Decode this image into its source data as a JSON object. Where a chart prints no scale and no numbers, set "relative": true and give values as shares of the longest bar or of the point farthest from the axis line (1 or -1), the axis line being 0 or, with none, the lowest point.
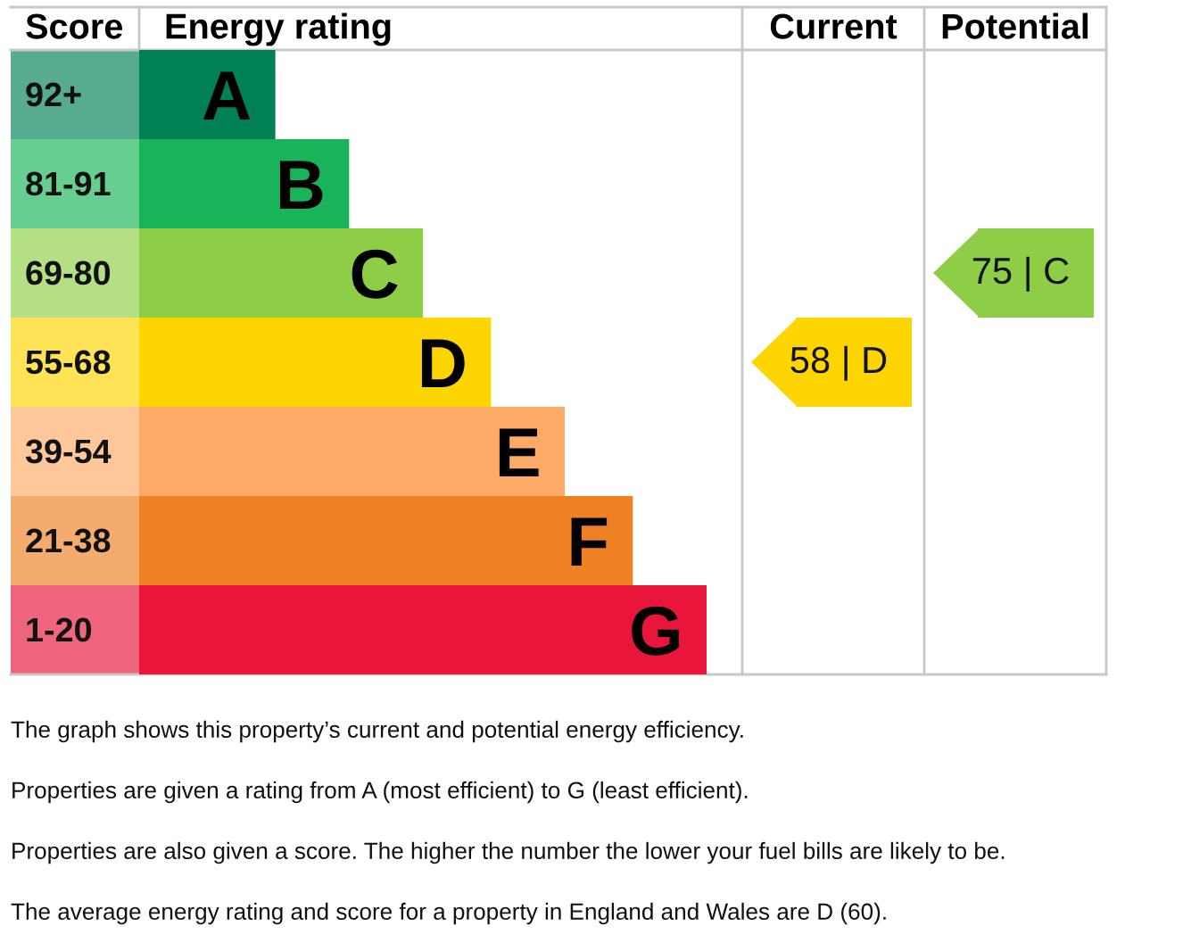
{
  "chart_data": {
    "type": "bar",
    "orientation": "horizontal",
    "relative": true,
    "xlabel": "Energy rating",
    "ylabel": "Score",
    "categories": [
      "92+",
      "81-91",
      "69-80",
      "55-68",
      "39-54",
      "21-38",
      "1-20"
    ],
    "y2_categories": [
      "A",
      "B",
      "C",
      "D",
      "E",
      "F",
      "G"
    ],
    "values": [
      0.24,
      0.37,
      0.5,
      0.62,
      0.75,
      0.87,
      1
    ],
    "colors": [
      "#008054",
      "#19b459",
      "#8dce46",
      "#ffd500",
      "#fcaa65",
      "#ef8023",
      "#e9153b"
    ],
    "ref_lines": [
      {
        "axis": "y",
        "value": "55-68",
        "label": "58 | D",
        "color": "#ffd500"
      },
      {
        "axis": "y",
        "value": "69-80",
        "label": "75 | C",
        "color": "#8dce46"
      }
    ],
    "annotations": [
      "Current",
      "Potential",
      "The graph shows this property’s current and potential energy efficiency.",
      "Properties are given a rating from A (most efficient) to G (least efficient).",
      "Properties are also given a score. The higher the number the lower your fuel bills are likely to be.",
      "The average energy rating and score for a property in England and Wales are D (60)."
    ]
  }
}
